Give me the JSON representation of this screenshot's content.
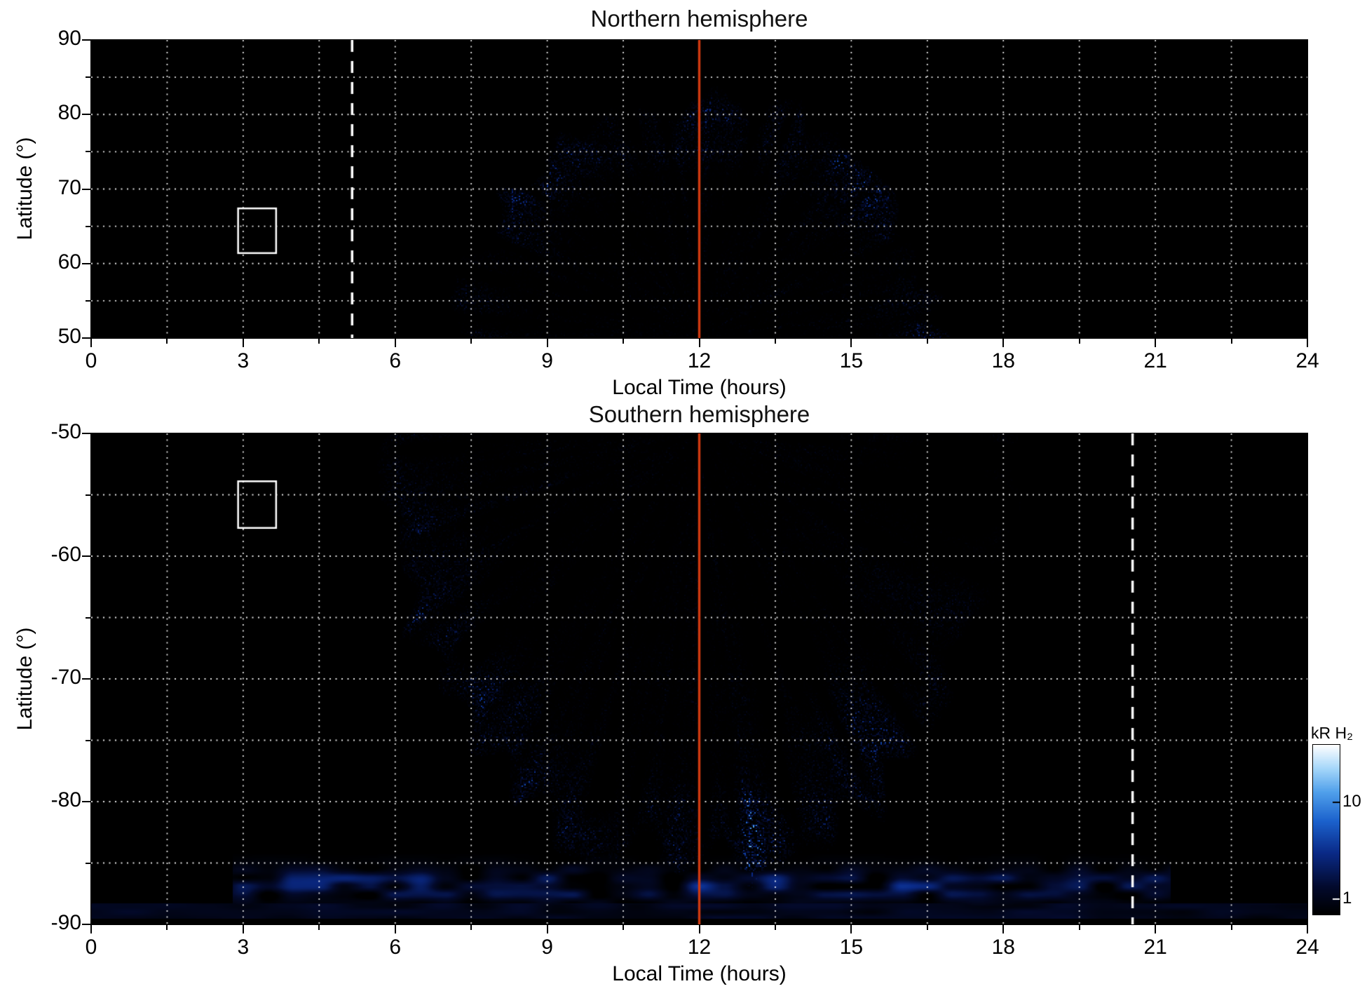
{
  "figure": {
    "background": "#ffffff",
    "colors": {
      "noon_line": "#cf3a10",
      "grid": "#ffffff",
      "frame": "#000000",
      "annotation": "#ffffff"
    }
  },
  "chart_data": [
    {
      "type": "heatmap",
      "panel": "top",
      "title": "Northern hemisphere",
      "xlabel": "Local Time (hours)",
      "ylabel": "Latitude (°)",
      "x_range": [
        0,
        24
      ],
      "y_range": [
        50,
        90
      ],
      "x_ticks": [
        "0",
        "3",
        "6",
        "9",
        "12",
        "15",
        "18",
        "21",
        "24"
      ],
      "y_ticks": [
        "90",
        "80",
        "70",
        "60",
        "50"
      ],
      "x_minor_step": 1.5,
      "y_grid_step": 5,
      "value_quantity": "H2 auroral emission brightness (kR)",
      "value_scale": "log colour scale ~1-40 kR, black-blue-white colormap",
      "annotations": {
        "noon_line_x": 12,
        "dashed_line_x": 5.15,
        "box": {
          "x": [
            2.9,
            3.65
          ],
          "lat": [
            61.4,
            67.4
          ]
        }
      },
      "content_summary": "Speckled blue emission fills a dome from ~6.8 h to ~17.2 h local time reaching ~85° latitude near noon; brightest white arc near the dome edge around 7.5-8.5 h at 70-75° latitude, secondary bright arcs 14-16 h at 75-80°; black (no data) elsewhere; solid red-orange meridian line at 12 h; white dashed line at ~5.15 h; small white selection box near 3-3.6 h, 61-67°.",
      "synthesis": {
        "seed": 7,
        "center": {
          "t": 12,
          "lat": 50
        },
        "t_scale": 6.73,
        "radius": 35,
        "base": 0.55,
        "ring_gain": 0.95,
        "fan_freq": 22,
        "speckle_dark": 0.45,
        "lobes": [
          {
            "a": 2.46,
            "w": 0.2,
            "r": 33.5,
            "rw": 4.5,
            "g": 1.7
          },
          {
            "a": 0.9,
            "w": 0.3,
            "r": 34.5,
            "rw": 5.5,
            "g": 1.1
          },
          {
            "a": 1.55,
            "w": 0.45,
            "r": 26.5,
            "rw": 3.0,
            "g": 0.5
          }
        ]
      }
    },
    {
      "type": "heatmap",
      "panel": "bottom",
      "title": "Southern hemisphere",
      "xlabel": "Local Time (hours)",
      "ylabel": "Latitude (°)",
      "x_range": [
        0,
        24
      ],
      "y_range": [
        -90,
        -50
      ],
      "x_ticks": [
        "0",
        "3",
        "6",
        "9",
        "12",
        "15",
        "18",
        "21",
        "24"
      ],
      "y_ticks": [
        "-50",
        "-60",
        "-70",
        "-80",
        "-90"
      ],
      "x_minor_step": 1.5,
      "y_grid_step": 5,
      "value_quantity": "H2 auroral emission brightness (kR)",
      "value_scale": "log colour scale ~1-40 kR, black-blue-white colormap",
      "annotations": {
        "noon_line_x": 12,
        "dashed_line_x": 20.55,
        "box": {
          "x": [
            2.9,
            3.65
          ],
          "lat": [
            -57.7,
            -53.9
          ]
        }
      },
      "content_summary": "Speckled blue emission spans ~5.2-18.9 h local time from -50° down to ~-86°; bright white arcs near -72° to -76° around 6-8 h and -74° to -81° around 13-17 h; thin horizontal emission band near -87° stretching ~3-21 h; faint dark-blue strip at -88.3° to -89.5° across all local times; solid red-orange meridian line at 12 h; white dashed line at ~20.55 h; small white selection box near 3-3.6 h, -54° to -58°.",
      "synthesis": {
        "seed": 13,
        "center": {
          "t": 12,
          "lat": -50
        },
        "t_scale": 5.55,
        "radius": 38,
        "base": 0.55,
        "ring_gain": 0.9,
        "fan_freq": 20,
        "speckle_dark": 0.45,
        "lobes": [
          {
            "a": -2.43,
            "w": 0.2,
            "r": 36.0,
            "rw": 5.0,
            "g": 1.7
          },
          {
            "a": -0.96,
            "w": 0.26,
            "r": 34.0,
            "rw": 6.0,
            "g": 1.2
          },
          {
            "a": -1.49,
            "w": 0.18,
            "r": 33.0,
            "rw": 5.0,
            "g": 0.7
          }
        ],
        "polar_band": {
          "lat": -86.8,
          "sigma": 1.3,
          "t0": 2.8,
          "t1": 21.3,
          "level": 0.5
        },
        "bottom_strip": {
          "lat_top": -88.3,
          "lat_bottom": -89.5,
          "level": 0.16
        }
      }
    }
  ],
  "colorbar": {
    "label": "kR H₂",
    "ticks": [
      {
        "label": "10",
        "pos": 0.34
      },
      {
        "label": "1",
        "pos": 0.91
      }
    ]
  }
}
